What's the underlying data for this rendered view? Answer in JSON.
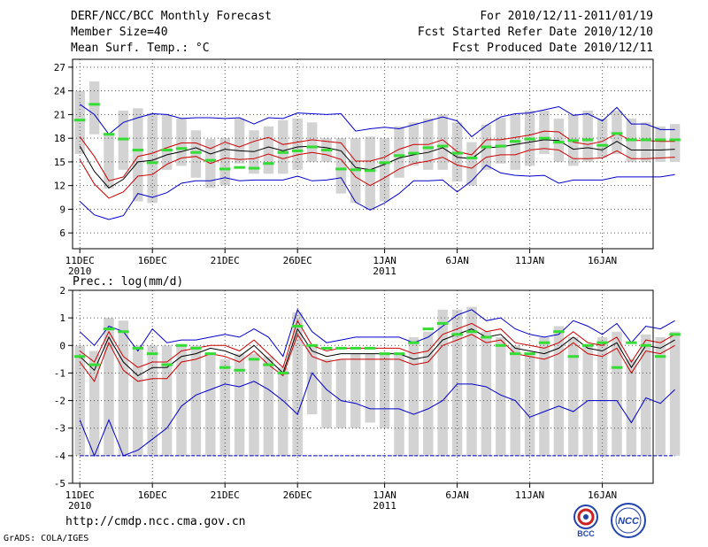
{
  "header": {
    "title": "DERF/NCC/BCC Monthly Forecast",
    "member_size": "Member Size=40",
    "variable": "Mean Surf. Temp.: °C",
    "period": "For 2010/12/11-2011/01/19",
    "started": "Fcst Started Refer Date 2010/12/10",
    "produced": "Fcst Produced Date 2010/12/11"
  },
  "footer": {
    "url": "http://cmdp.ncc.cma.gov.cn",
    "credit": "GrADS: COLA/IGES",
    "logo_bcc": "BCC",
    "logo_ncc": "NCC"
  },
  "colors": {
    "box": "#d3d3d3",
    "obs": "#33dd33",
    "mean": "#000000",
    "band": "#cc0000",
    "extreme": "#0000cc",
    "grid": "#555555"
  },
  "chart_data": [
    {
      "type": "line",
      "title": "Mean Surf. Temp.: °C",
      "ylim": [
        4,
        28
      ],
      "yticks": [
        6,
        9,
        12,
        15,
        18,
        21,
        24,
        27
      ],
      "xlim": [
        0.5,
        40.5
      ],
      "xticks": [
        {
          "day": 1,
          "label": "11DEC",
          "year": "2010"
        },
        {
          "day": 6,
          "label": "16DEC"
        },
        {
          "day": 11,
          "label": "21DEC"
        },
        {
          "day": 16,
          "label": "26DEC"
        },
        {
          "day": 22,
          "label": "1JAN",
          "year": "2011"
        },
        {
          "day": 27,
          "label": "6JAN"
        },
        {
          "day": 32,
          "label": "11JAN"
        },
        {
          "day": 37,
          "label": "16JAN"
        }
      ],
      "series": [
        {
          "name": "max",
          "values": [
            22.3,
            21.0,
            18.5,
            20.0,
            20.6,
            21.1,
            21.0,
            20.5,
            20.6,
            20.6,
            20.5,
            20.6,
            19.8,
            20.6,
            20.5,
            21.2,
            21.1,
            21.0,
            21.1,
            18.9,
            19.2,
            19.4,
            19.2,
            19.7,
            20.2,
            20.7,
            20.2,
            18.2,
            19.6,
            20.7,
            21.1,
            21.2,
            21.6,
            22.0,
            20.9,
            21.1,
            20.2,
            21.9,
            19.8,
            19.8,
            19.1,
            19.1
          ]
        },
        {
          "name": "upper",
          "values": [
            18.2,
            15.7,
            12.6,
            13.1,
            15.7,
            16.1,
            16.8,
            17.4,
            17.4,
            16.7,
            17.5,
            16.9,
            17.6,
            18.1,
            17.2,
            17.5,
            17.8,
            17.6,
            17.4,
            15.1,
            15.1,
            15.6,
            16.6,
            17.2,
            17.2,
            17.8,
            16.3,
            15.9,
            17.8,
            17.8,
            18.1,
            18.4,
            18.9,
            18.8,
            17.5,
            17.2,
            17.6,
            18.6,
            17.7,
            17.7,
            17.6,
            17.6
          ]
        },
        {
          "name": "mean",
          "values": [
            17.0,
            13.8,
            11.7,
            12.8,
            15.0,
            15.2,
            15.9,
            16.3,
            16.8,
            16.0,
            16.6,
            16.4,
            16.3,
            16.9,
            16.4,
            16.9,
            17.0,
            16.8,
            16.4,
            14.3,
            14.0,
            14.7,
            15.5,
            15.9,
            16.2,
            16.8,
            15.6,
            15.4,
            16.8,
            16.9,
            17.2,
            17.5,
            17.8,
            17.7,
            16.6,
            16.8,
            16.5,
            17.6,
            16.5,
            16.5,
            16.5,
            16.6
          ]
        },
        {
          "name": "lower",
          "values": [
            15.3,
            12.2,
            10.4,
            11.2,
            13.2,
            13.4,
            14.7,
            15.5,
            15.7,
            14.8,
            15.5,
            15.3,
            15.4,
            16.0,
            15.4,
            15.9,
            16.2,
            15.9,
            15.3,
            13.1,
            12.0,
            13.0,
            14.1,
            14.8,
            15.1,
            15.6,
            14.6,
            14.2,
            15.6,
            15.9,
            15.9,
            16.5,
            16.7,
            16.5,
            15.4,
            15.4,
            15.5,
            16.4,
            15.4,
            15.4,
            15.5,
            15.6
          ]
        },
        {
          "name": "min",
          "values": [
            10.0,
            8.3,
            7.7,
            8.2,
            11.0,
            10.5,
            11.1,
            12.3,
            12.6,
            12.6,
            13.0,
            12.6,
            12.7,
            12.7,
            12.7,
            13.2,
            12.6,
            12.7,
            13.0,
            9.9,
            8.9,
            9.8,
            11.0,
            12.6,
            12.6,
            12.7,
            11.2,
            12.6,
            14.6,
            13.6,
            13.3,
            13.2,
            13.3,
            12.3,
            12.7,
            12.7,
            12.7,
            13.1,
            13.1,
            13.1,
            13.1,
            13.4
          ]
        },
        {
          "name": "observed",
          "values": [
            20.3,
            22.3,
            18.5,
            17.9,
            16.5,
            14.9,
            16.5,
            16.7,
            16.2,
            15.2,
            14.1,
            14.3,
            14.2,
            14.8,
            16.2,
            16.4,
            16.9,
            16.5,
            14.1,
            14.0,
            13.9,
            14.9,
            15.8,
            16.1,
            16.8,
            17.0,
            16.1,
            15.5,
            16.9,
            17.0,
            17.6,
            17.9,
            18.0,
            17.5,
            17.7,
            17.8,
            17.1,
            18.6,
            17.8,
            17.8,
            17.8,
            17.8
          ]
        }
      ],
      "boxes": [
        [
          24.0,
          16.0
        ],
        [
          25.2,
          18.5
        ],
        [
          18.5,
          11.6
        ],
        [
          21.5,
          14.0
        ],
        [
          21.8,
          10.0
        ],
        [
          21.2,
          9.8
        ],
        [
          21.0,
          14.0
        ],
        [
          20.5,
          14.5
        ],
        [
          19.0,
          13.0
        ],
        [
          17.9,
          11.7
        ],
        [
          18.0,
          12.0
        ],
        [
          20.5,
          14.8
        ],
        [
          19.0,
          13.5
        ],
        [
          19.5,
          13.5
        ],
        [
          20.3,
          13.5
        ],
        [
          20.5,
          14.0
        ],
        [
          20.0,
          15.0
        ],
        [
          18.0,
          15.0
        ],
        [
          18.0,
          11.0
        ],
        [
          18.0,
          9.8
        ],
        [
          18.2,
          9.0
        ],
        [
          18.0,
          10.0
        ],
        [
          19.5,
          13.0
        ],
        [
          20.0,
          14.5
        ],
        [
          20.5,
          14.0
        ],
        [
          21.0,
          14.0
        ],
        [
          20.0,
          12.5
        ],
        [
          17.5,
          12.0
        ],
        [
          19.7,
          14.0
        ],
        [
          20.6,
          14.8
        ],
        [
          21.0,
          14.0
        ],
        [
          21.5,
          14.5
        ],
        [
          21.5,
          16.0
        ],
        [
          20.5,
          15.0
        ],
        [
          21.0,
          14.5
        ],
        [
          21.5,
          15.0
        ],
        [
          20.5,
          15.5
        ],
        [
          21.5,
          16.0
        ],
        [
          20.5,
          15.0
        ],
        [
          20.0,
          15.0
        ],
        [
          19.5,
          15.0
        ],
        [
          19.8,
          15.0
        ]
      ]
    },
    {
      "type": "line",
      "title": "Prec.: log(mm/d)",
      "ylim": [
        -5,
        2
      ],
      "yticks": [
        -5,
        -4,
        -3,
        -2,
        -1,
        0,
        1,
        2
      ],
      "xlim": [
        0.5,
        40.5
      ],
      "xticks": [
        {
          "day": 1,
          "label": "11DEC",
          "year": "2010"
        },
        {
          "day": 6,
          "label": "16DEC"
        },
        {
          "day": 11,
          "label": "21DEC"
        },
        {
          "day": 16,
          "label": "26DEC"
        },
        {
          "day": 22,
          "label": "1JAN",
          "year": "2011"
        },
        {
          "day": 27,
          "label": "6JAN"
        },
        {
          "day": 32,
          "label": "11JAN"
        },
        {
          "day": 37,
          "label": "16JAN"
        }
      ],
      "series": [
        {
          "name": "max",
          "values": [
            0.5,
            0.0,
            0.7,
            0.5,
            -0.2,
            0.6,
            0.1,
            0.2,
            0.2,
            0.3,
            0.4,
            0.3,
            0.6,
            0.3,
            -0.4,
            1.3,
            0.5,
            0.1,
            0.2,
            0.3,
            0.3,
            0.3,
            0.3,
            0.1,
            0.3,
            0.7,
            1.1,
            1.3,
            0.9,
            1.0,
            0.6,
            0.4,
            0.3,
            0.4,
            0.9,
            0.7,
            0.4,
            0.8,
            0.1,
            0.7,
            0.6,
            0.9
          ]
        },
        {
          "name": "upper",
          "values": [
            -0.2,
            -0.6,
            0.5,
            -0.4,
            -0.8,
            -0.6,
            -0.6,
            -0.2,
            -0.1,
            0.0,
            0.0,
            -0.2,
            0.2,
            -0.3,
            -0.8,
            0.9,
            0.0,
            -0.2,
            -0.1,
            -0.1,
            -0.1,
            -0.1,
            -0.1,
            -0.3,
            -0.2,
            0.4,
            0.6,
            0.8,
            0.5,
            0.6,
            0.1,
            0.0,
            -0.1,
            0.1,
            0.5,
            0.1,
            0.0,
            0.3,
            -0.6,
            0.2,
            0.1,
            0.4
          ]
        },
        {
          "name": "mean",
          "values": [
            -0.4,
            -0.9,
            0.3,
            -0.6,
            -1.1,
            -0.8,
            -0.8,
            -0.4,
            -0.3,
            -0.1,
            -0.2,
            -0.4,
            0.0,
            -0.5,
            -1.0,
            0.6,
            -0.2,
            -0.4,
            -0.3,
            -0.3,
            -0.3,
            -0.3,
            -0.3,
            -0.5,
            -0.4,
            0.2,
            0.4,
            0.6,
            0.3,
            0.4,
            -0.1,
            -0.2,
            -0.3,
            -0.1,
            0.3,
            -0.1,
            -0.2,
            0.1,
            -0.8,
            0.0,
            -0.1,
            0.2
          ]
        },
        {
          "name": "lower",
          "values": [
            -0.6,
            -1.3,
            0.1,
            -0.9,
            -1.3,
            -1.2,
            -1.2,
            -0.6,
            -0.5,
            -0.3,
            -0.4,
            -0.6,
            -0.2,
            -0.7,
            -1.1,
            0.4,
            -0.4,
            -0.6,
            -0.5,
            -0.5,
            -0.5,
            -0.5,
            -0.5,
            -0.7,
            -0.6,
            0.0,
            0.2,
            0.4,
            0.1,
            0.2,
            -0.3,
            -0.4,
            -0.5,
            -0.3,
            0.1,
            -0.3,
            -0.4,
            -0.1,
            -1.0,
            -0.2,
            -0.3,
            0.0
          ]
        },
        {
          "name": "min",
          "values": [
            -2.7,
            -4.0,
            -2.7,
            -4.0,
            -3.8,
            -3.4,
            -3.0,
            -2.2,
            -1.8,
            -1.6,
            -1.4,
            -1.5,
            -1.3,
            -1.6,
            -2.0,
            -2.5,
            -1.0,
            -1.6,
            -2.0,
            -2.1,
            -2.3,
            -2.3,
            -2.3,
            -2.5,
            -2.3,
            -2.0,
            -1.4,
            -1.4,
            -1.5,
            -1.8,
            -2.0,
            -2.6,
            -2.4,
            -2.2,
            -2.4,
            -2.0,
            -2.0,
            -2.0,
            -2.8,
            -1.9,
            -2.1,
            -1.6
          ]
        },
        {
          "name": "observed",
          "values": [
            -0.4,
            -0.7,
            0.6,
            0.5,
            -0.1,
            -0.3,
            -0.7,
            0.0,
            -0.1,
            -0.3,
            -0.8,
            -0.9,
            -0.5,
            -0.7,
            -1.0,
            0.7,
            0.0,
            -0.1,
            -0.1,
            -0.1,
            -0.1,
            -0.3,
            -0.3,
            0.1,
            0.6,
            0.8,
            0.4,
            0.5,
            0.3,
            0.0,
            -0.3,
            -0.3,
            0.1,
            0.5,
            -0.4,
            0.0,
            0.1,
            -0.8,
            0.1,
            0.0,
            -0.4,
            0.4
          ]
        }
      ],
      "boxes": [
        [
          0.0,
          -4.0
        ],
        [
          -0.2,
          -4.0
        ],
        [
          1.0,
          -4.0
        ],
        [
          0.9,
          -4.0
        ],
        [
          0.0,
          -4.0
        ],
        [
          0.0,
          -4.0
        ],
        [
          0.0,
          -4.0
        ],
        [
          0.0,
          -4.0
        ],
        [
          0.0,
          -4.0
        ],
        [
          -0.3,
          -4.0
        ],
        [
          -0.5,
          -4.0
        ],
        [
          -0.3,
          -4.0
        ],
        [
          -0.3,
          -4.0
        ],
        [
          -0.4,
          -4.0
        ],
        [
          -0.8,
          -4.0
        ],
        [
          1.2,
          -4.0
        ],
        [
          0.0,
          -2.5
        ],
        [
          -0.5,
          -3.0
        ],
        [
          -0.5,
          -3.0
        ],
        [
          -0.3,
          -3.0
        ],
        [
          -0.3,
          -2.8
        ],
        [
          -0.3,
          -3.0
        ],
        [
          -0.3,
          -4.0
        ],
        [
          0.3,
          -4.0
        ],
        [
          0.5,
          -4.0
        ],
        [
          1.3,
          -4.0
        ],
        [
          1.3,
          -4.0
        ],
        [
          1.4,
          -4.0
        ],
        [
          0.5,
          -4.0
        ],
        [
          0.3,
          -4.0
        ],
        [
          0.0,
          -4.0
        ],
        [
          -0.3,
          -4.0
        ],
        [
          0.3,
          -4.0
        ],
        [
          0.7,
          -4.0
        ],
        [
          0.3,
          -4.0
        ],
        [
          0.0,
          -4.0
        ],
        [
          0.3,
          -4.0
        ],
        [
          0.5,
          -4.0
        ],
        [
          -0.5,
          -4.0
        ],
        [
          0.4,
          -4.0
        ],
        [
          0.3,
          -4.0
        ],
        [
          0.5,
          -4.0
        ]
      ]
    }
  ]
}
